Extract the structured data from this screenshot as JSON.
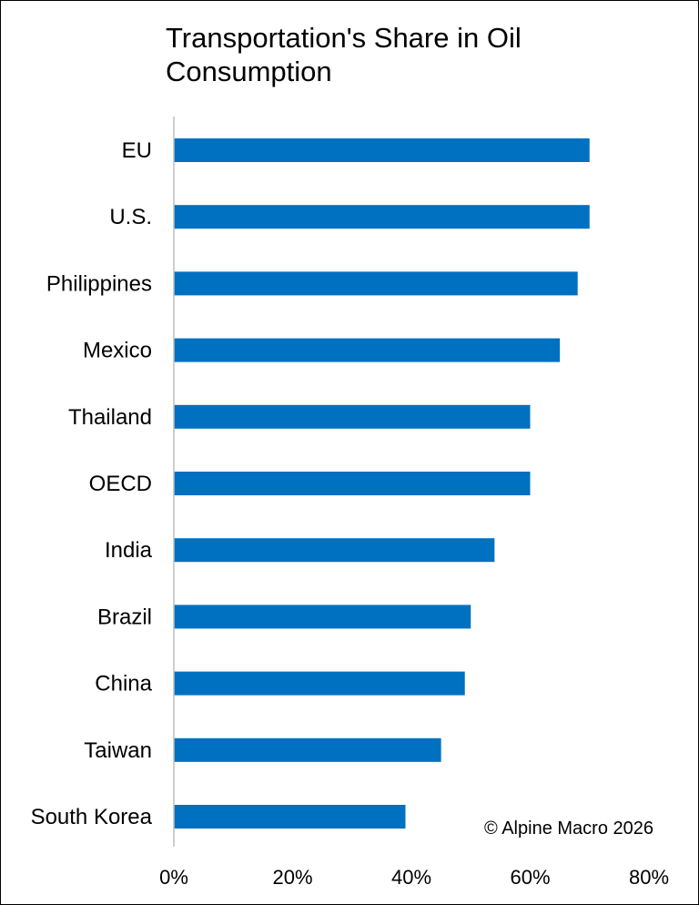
{
  "chart_data": {
    "type": "bar",
    "orientation": "horizontal",
    "title": "Transportation's Share in Oil Consumption",
    "categories": [
      "EU",
      "U.S.",
      "Philippines",
      "Mexico",
      "Thailand",
      "OECD",
      "India",
      "Brazil",
      "China",
      "Taiwan",
      "South Korea"
    ],
    "values": [
      70,
      70,
      68,
      65,
      60,
      60,
      54,
      50,
      49,
      45,
      39
    ],
    "value_unit": "%",
    "xlim": [
      0,
      80
    ],
    "xticks": [
      0,
      20,
      40,
      60,
      80
    ],
    "xtick_labels": [
      "0%",
      "20%",
      "40%",
      "60%",
      "80%"
    ],
    "xlabel": "",
    "ylabel": "",
    "grid": false,
    "legend": "none",
    "bar_color": "#0070C0",
    "axis_color": "#BFBFBF",
    "source_note": "© Alpine Macro 2026"
  }
}
